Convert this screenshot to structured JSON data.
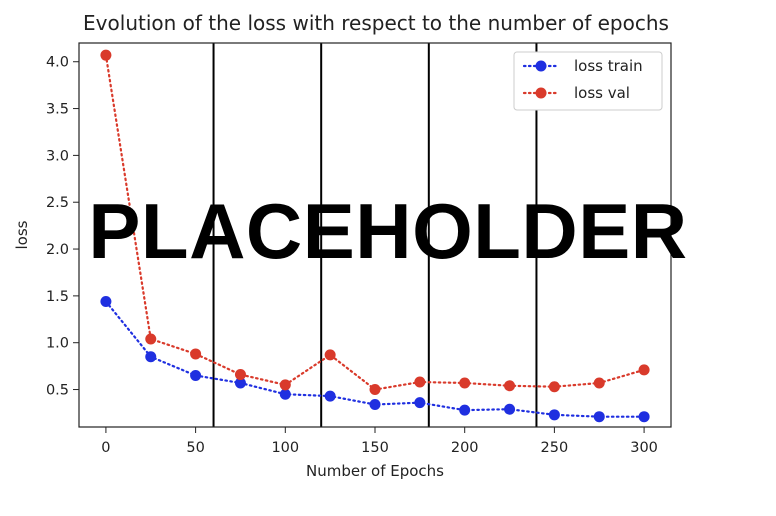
{
  "overlay_text": "PLACEHOLDER",
  "chart_data": {
    "type": "line",
    "title": "Evolution of the loss with respect to the number of epochs",
    "xlabel": "Number of Epochs",
    "ylabel": "loss",
    "xlim": [
      -15,
      315
    ],
    "ylim": [
      0.1,
      4.2
    ],
    "x_ticks": [
      0,
      50,
      100,
      150,
      200,
      250,
      300
    ],
    "y_ticks": [
      0.5,
      1.0,
      1.5,
      2.0,
      2.5,
      3.0,
      3.5,
      4.0
    ],
    "vertical_lines": [
      60,
      120,
      180,
      240
    ],
    "grid": false,
    "legend_position": "top-right",
    "series": [
      {
        "name": "loss train",
        "color": "#1f2fe0",
        "marker": "circle",
        "line_style": "dotted",
        "x": [
          0,
          25,
          50,
          75,
          100,
          125,
          150,
          175,
          200,
          225,
          250,
          275,
          300
        ],
        "y": [
          1.44,
          0.85,
          0.65,
          0.57,
          0.45,
          0.43,
          0.34,
          0.36,
          0.28,
          0.29,
          0.23,
          0.21,
          0.21
        ]
      },
      {
        "name": "loss val",
        "color": "#d93a2b",
        "marker": "circle",
        "line_style": "dotted",
        "x": [
          0,
          25,
          50,
          75,
          100,
          125,
          150,
          175,
          200,
          225,
          250,
          275,
          300
        ],
        "y": [
          4.07,
          1.04,
          0.88,
          0.66,
          0.55,
          0.87,
          0.5,
          0.58,
          0.57,
          0.54,
          0.53,
          0.57,
          0.71
        ]
      }
    ]
  }
}
